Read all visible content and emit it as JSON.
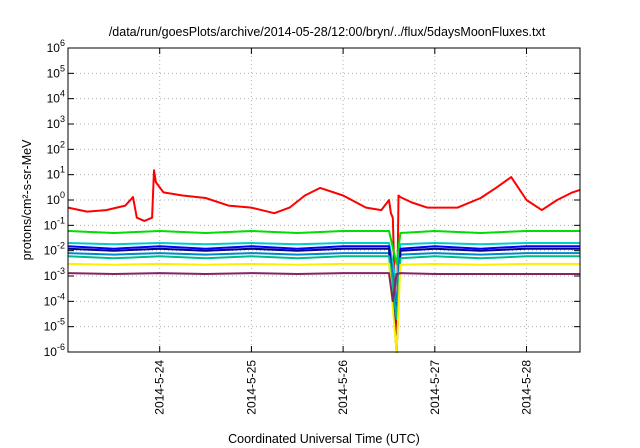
{
  "chart_data": {
    "type": "line",
    "title": "/data/run/goesPlots/archive/2014-05-28/12:00/bryn/../flux/5daysMoonFluxes.txt",
    "xlabel": "Coordinated Universal Time (UTC)",
    "ylabel": "protons/cm²-s-sr-MeV",
    "y_scale": "log",
    "ylim": [
      1e-06,
      1000000.0
    ],
    "xlim": [
      "2014-05-23 00:00",
      "2014-05-28 14:00"
    ],
    "grid": true,
    "y_ticks": [
      {
        "value": -6,
        "base": "10",
        "exp": "-6"
      },
      {
        "value": -5,
        "base": "10",
        "exp": "-5"
      },
      {
        "value": -4,
        "base": "10",
        "exp": "-4"
      },
      {
        "value": -3,
        "base": "10",
        "exp": "-3"
      },
      {
        "value": -2,
        "base": "10",
        "exp": "-2"
      },
      {
        "value": -1,
        "base": "10",
        "exp": "-1"
      },
      {
        "value": 0,
        "base": "10",
        "exp": "0"
      },
      {
        "value": 1,
        "base": "10",
        "exp": "1"
      },
      {
        "value": 2,
        "base": "10",
        "exp": "2"
      },
      {
        "value": 3,
        "base": "10",
        "exp": "3"
      },
      {
        "value": 4,
        "base": "10",
        "exp": "4"
      },
      {
        "value": 5,
        "base": "10",
        "exp": "5"
      },
      {
        "value": 6,
        "base": "10",
        "exp": "6"
      }
    ],
    "x_ticks": [
      {
        "day": 1,
        "label": "2014-5-24"
      },
      {
        "day": 2,
        "label": "2014-5-25"
      },
      {
        "day": 3,
        "label": "2014-5-26"
      },
      {
        "day": 4,
        "label": "2014-5-27"
      },
      {
        "day": 5,
        "label": "2014-5-28"
      }
    ],
    "series": [
      {
        "color": "#ff0000",
        "x": [
          "2014-05-23 00:00",
          "2014-05-23 05:00",
          "2014-05-23 10:00",
          "2014-05-23 15:00",
          "2014-05-23 17:00",
          "2014-05-23 18:00",
          "2014-05-23 20:00",
          "2014-05-23 22:00",
          "2014-05-23 22:30",
          "2014-05-23 23:00",
          "2014-05-24 01:00",
          "2014-05-24 06:00",
          "2014-05-24 12:00",
          "2014-05-24 18:00",
          "2014-05-25 00:00",
          "2014-05-25 06:00",
          "2014-05-25 10:00",
          "2014-05-25 14:00",
          "2014-05-25 18:00",
          "2014-05-26 00:00",
          "2014-05-26 06:00",
          "2014-05-26 10:00",
          "2014-05-26 12:00",
          "2014-05-26 12:30",
          "2014-05-26 13:00",
          "2014-05-26 14:00",
          "2014-05-26 14:30",
          "2014-05-26 15:00",
          "2014-05-26 18:00",
          "2014-05-26 22:00",
          "2014-05-27 02:00",
          "2014-05-27 06:00",
          "2014-05-27 12:00",
          "2014-05-27 16:00",
          "2014-05-27 20:00",
          "2014-05-28 00:00",
          "2014-05-28 04:00",
          "2014-05-28 08:00",
          "2014-05-28 12:00",
          "2014-05-28 14:00"
        ],
        "values": [
          0.5,
          0.35,
          0.4,
          0.6,
          1.3,
          0.2,
          0.15,
          0.2,
          15,
          5,
          2,
          1.5,
          1.2,
          0.6,
          0.5,
          0.3,
          0.5,
          1.5,
          3,
          1.5,
          0.5,
          0.4,
          1,
          0.3,
          0.2,
          1e-06,
          1.5,
          1.3,
          0.8,
          0.5,
          0.5,
          0.5,
          1.2,
          3,
          8,
          1,
          0.4,
          1,
          2,
          2.5
        ]
      },
      {
        "color": "#00dd00",
        "x": [
          "2014-05-23 00:00",
          "2014-05-23 12:00",
          "2014-05-24 00:00",
          "2014-05-24 12:00",
          "2014-05-25 00:00",
          "2014-05-25 12:00",
          "2014-05-26 00:00",
          "2014-05-26 12:00",
          "2014-05-26 14:00",
          "2014-05-26 15:00",
          "2014-05-27 00:00",
          "2014-05-27 12:00",
          "2014-05-28 00:00",
          "2014-05-28 14:00"
        ],
        "values": [
          0.06,
          0.05,
          0.06,
          0.05,
          0.06,
          0.05,
          0.06,
          0.06,
          0.003,
          0.05,
          0.06,
          0.05,
          0.06,
          0.06
        ]
      },
      {
        "color": "#00cccc",
        "x": [
          "2014-05-23 00:00",
          "2014-05-23 12:00",
          "2014-05-24 00:00",
          "2014-05-24 12:00",
          "2014-05-25 00:00",
          "2014-05-25 12:00",
          "2014-05-26 00:00",
          "2014-05-26 12:00",
          "2014-05-26 14:00",
          "2014-05-26 15:00",
          "2014-05-27 00:00",
          "2014-05-27 12:00",
          "2014-05-28 00:00",
          "2014-05-28 14:00"
        ],
        "values": [
          0.02,
          0.018,
          0.02,
          0.018,
          0.02,
          0.018,
          0.02,
          0.02,
          0.0005,
          0.018,
          0.02,
          0.018,
          0.02,
          0.02
        ]
      },
      {
        "color": "#0000ff",
        "x": [
          "2014-05-23 00:00",
          "2014-05-23 12:00",
          "2014-05-24 00:00",
          "2014-05-24 12:00",
          "2014-05-25 00:00",
          "2014-05-25 12:00",
          "2014-05-26 00:00",
          "2014-05-26 12:00",
          "2014-05-26 14:00",
          "2014-05-26 15:00",
          "2014-05-27 00:00",
          "2014-05-27 12:00",
          "2014-05-28 00:00",
          "2014-05-28 14:00"
        ],
        "values": [
          0.015,
          0.012,
          0.015,
          0.012,
          0.015,
          0.012,
          0.015,
          0.015,
          5e-05,
          0.012,
          0.015,
          0.012,
          0.015,
          0.015
        ]
      },
      {
        "color": "#0088cc",
        "x": [
          "2014-05-23 00:00",
          "2014-05-23 12:00",
          "2014-05-24 00:00",
          "2014-05-24 12:00",
          "2014-05-25 00:00",
          "2014-05-25 12:00",
          "2014-05-26 00:00",
          "2014-05-26 12:00",
          "2014-05-26 14:00",
          "2014-05-26 15:00",
          "2014-05-27 00:00",
          "2014-05-27 12:00",
          "2014-05-28 00:00",
          "2014-05-28 14:00"
        ],
        "values": [
          0.008,
          0.007,
          0.008,
          0.007,
          0.008,
          0.007,
          0.008,
          0.008,
          0.0001,
          0.007,
          0.008,
          0.007,
          0.008,
          0.008
        ]
      },
      {
        "color": "#000088",
        "x": [
          "2014-05-23 00:00",
          "2014-05-23 12:00",
          "2014-05-24 00:00",
          "2014-05-24 12:00",
          "2014-05-25 00:00",
          "2014-05-25 12:00",
          "2014-05-26 00:00",
          "2014-05-26 12:00",
          "2014-05-26 14:00",
          "2014-05-26 15:00",
          "2014-05-27 00:00",
          "2014-05-27 12:00",
          "2014-05-28 00:00",
          "2014-05-28 14:00"
        ],
        "values": [
          0.012,
          0.01,
          0.012,
          0.01,
          0.012,
          0.01,
          0.012,
          0.012,
          1e-06,
          0.01,
          0.012,
          0.01,
          0.012,
          0.012
        ]
      },
      {
        "color": "#00bb88",
        "x": [
          "2014-05-23 00:00",
          "2014-05-23 12:00",
          "2014-05-24 00:00",
          "2014-05-24 12:00",
          "2014-05-25 00:00",
          "2014-05-25 12:00",
          "2014-05-26 00:00",
          "2014-05-26 12:00",
          "2014-05-26 14:00",
          "2014-05-26 15:00",
          "2014-05-27 00:00",
          "2014-05-27 12:00",
          "2014-05-28 00:00",
          "2014-05-28 14:00"
        ],
        "values": [
          0.006,
          0.005,
          0.006,
          0.005,
          0.006,
          0.005,
          0.006,
          0.006,
          2e-05,
          0.005,
          0.006,
          0.005,
          0.006,
          0.006
        ]
      },
      {
        "color": "#ffee00",
        "x": [
          "2014-05-23 00:00",
          "2014-05-23 12:00",
          "2014-05-24 00:00",
          "2014-05-24 12:00",
          "2014-05-25 00:00",
          "2014-05-25 12:00",
          "2014-05-26 00:00",
          "2014-05-26 12:00",
          "2014-05-26 14:00",
          "2014-05-26 15:00",
          "2014-05-27 00:00",
          "2014-05-27 12:00",
          "2014-05-28 00:00",
          "2014-05-28 14:00"
        ],
        "values": [
          0.003,
          0.0028,
          0.003,
          0.0028,
          0.003,
          0.0028,
          0.003,
          0.003,
          1e-06,
          0.0028,
          0.003,
          0.0028,
          0.003,
          0.003
        ]
      },
      {
        "color": "#882266",
        "x": [
          "2014-05-23 00:00",
          "2014-05-23 12:00",
          "2014-05-24 00:00",
          "2014-05-24 12:00",
          "2014-05-25 00:00",
          "2014-05-25 12:00",
          "2014-05-26 00:00",
          "2014-05-26 12:00",
          "2014-05-26 13:00",
          "2014-05-26 14:00",
          "2014-05-26 15:00",
          "2014-05-27 00:00",
          "2014-05-27 12:00",
          "2014-05-28 00:00",
          "2014-05-28 14:00"
        ],
        "values": [
          0.0013,
          0.0012,
          0.0013,
          0.0012,
          0.0013,
          0.0012,
          0.0013,
          0.0013,
          0.0001,
          0.0012,
          0.0013,
          0.0012,
          0.0012,
          0.0012,
          0.0012
        ]
      }
    ]
  }
}
